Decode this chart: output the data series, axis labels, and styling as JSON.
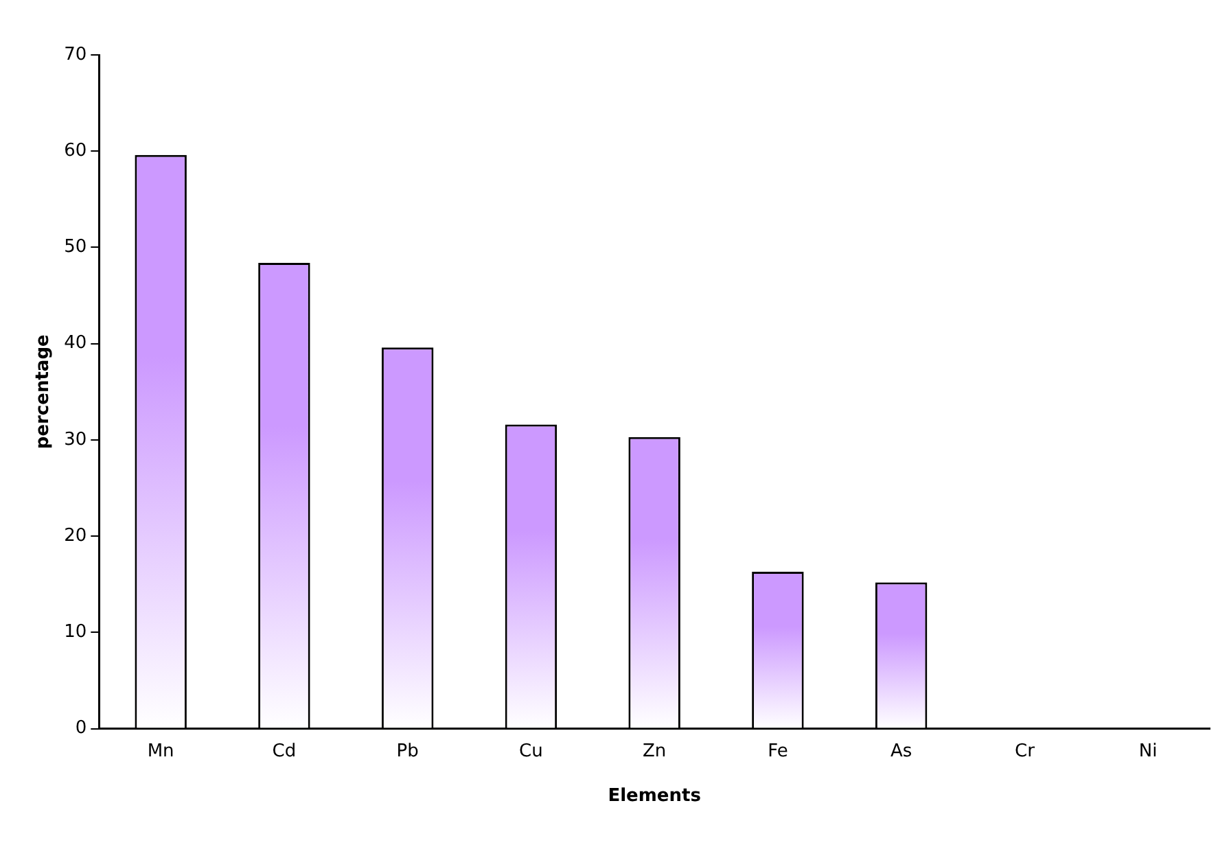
{
  "chart_data": {
    "type": "bar",
    "xlabel": "Elements",
    "ylabel": "percentage",
    "categories": [
      "Mn",
      "Cd",
      "Pb",
      "Cu",
      "Zn",
      "Fe",
      "As",
      "Cr",
      "Ni"
    ],
    "values": [
      59.6,
      48.4,
      39.6,
      31.6,
      30.3,
      16.3,
      15.2,
      0,
      0
    ],
    "color": "#cc99ff",
    "ylim": [
      0,
      70
    ],
    "yticks": [
      0,
      10,
      20,
      30,
      40,
      50,
      60,
      70
    ],
    "grid": false,
    "legend": false
  }
}
